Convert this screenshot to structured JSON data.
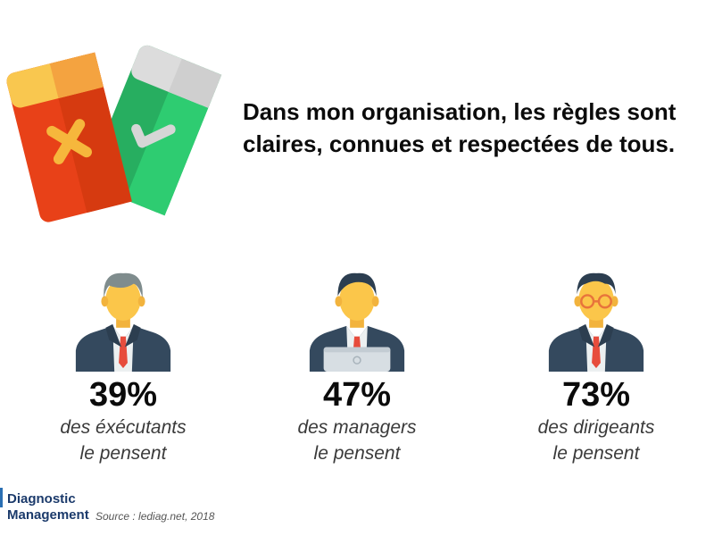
{
  "headline": {
    "line1": "Dans mon organisation, les règles sont",
    "line2": "claires, connues et respectées de tous."
  },
  "illustration": {
    "red_card": {
      "icon": "cross-icon",
      "color": "#f25022"
    },
    "green_card": {
      "icon": "check-icon",
      "color": "#2ecc55"
    }
  },
  "stats": [
    {
      "percent": "39%",
      "line1": "des éxécutants",
      "line2": "le pensent",
      "figure": "executant-icon"
    },
    {
      "percent": "47%",
      "line1": "des managers",
      "line2": "le pensent",
      "figure": "manager-icon"
    },
    {
      "percent": "73%",
      "line1": "des dirigeants",
      "line2": "le pensent",
      "figure": "dirigeant-icon"
    }
  ],
  "footer": {
    "brand_line1": "Diagnostic",
    "brand_line2": "Management",
    "source": "Source : lediag.net, 2018"
  },
  "colors": {
    "skin": "#fbc64a",
    "suit": "#34495e",
    "tie": "#e74c3c",
    "brand": "#1b3a6b"
  }
}
